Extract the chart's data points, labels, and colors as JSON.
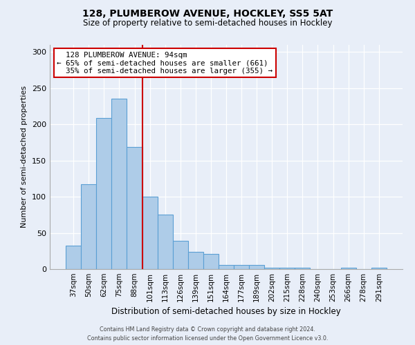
{
  "title": "128, PLUMBEROW AVENUE, HOCKLEY, SS5 5AT",
  "subtitle": "Size of property relative to semi-detached houses in Hockley",
  "xlabel": "Distribution of semi-detached houses by size in Hockley",
  "ylabel": "Number of semi-detached properties",
  "bar_labels": [
    "37sqm",
    "50sqm",
    "62sqm",
    "75sqm",
    "88sqm",
    "101sqm",
    "113sqm",
    "126sqm",
    "139sqm",
    "151sqm",
    "164sqm",
    "177sqm",
    "189sqm",
    "202sqm",
    "215sqm",
    "228sqm",
    "240sqm",
    "253sqm",
    "266sqm",
    "278sqm",
    "291sqm"
  ],
  "bar_values": [
    32,
    117,
    209,
    236,
    169,
    100,
    75,
    39,
    24,
    21,
    6,
    6,
    6,
    2,
    2,
    2,
    0,
    0,
    2,
    0,
    2
  ],
  "bar_color": "#aecce8",
  "bar_edge_color": "#5a9fd4",
  "ylim": [
    0,
    310
  ],
  "yticks": [
    0,
    50,
    100,
    150,
    200,
    250,
    300
  ],
  "property_line_x": 4.5,
  "property_size": "94sqm",
  "property_label": "128 PLUMBEROW AVENUE: 94sqm",
  "pct_smaller": 65,
  "count_smaller": 661,
  "pct_larger": 35,
  "count_larger": 355,
  "annotation_box_color": "#ffffff",
  "annotation_box_edge_color": "#cc0000",
  "line_color": "#cc0000",
  "background_color": "#e8eef8",
  "footer_line1": "Contains HM Land Registry data © Crown copyright and database right 2024.",
  "footer_line2": "Contains public sector information licensed under the Open Government Licence v3.0."
}
